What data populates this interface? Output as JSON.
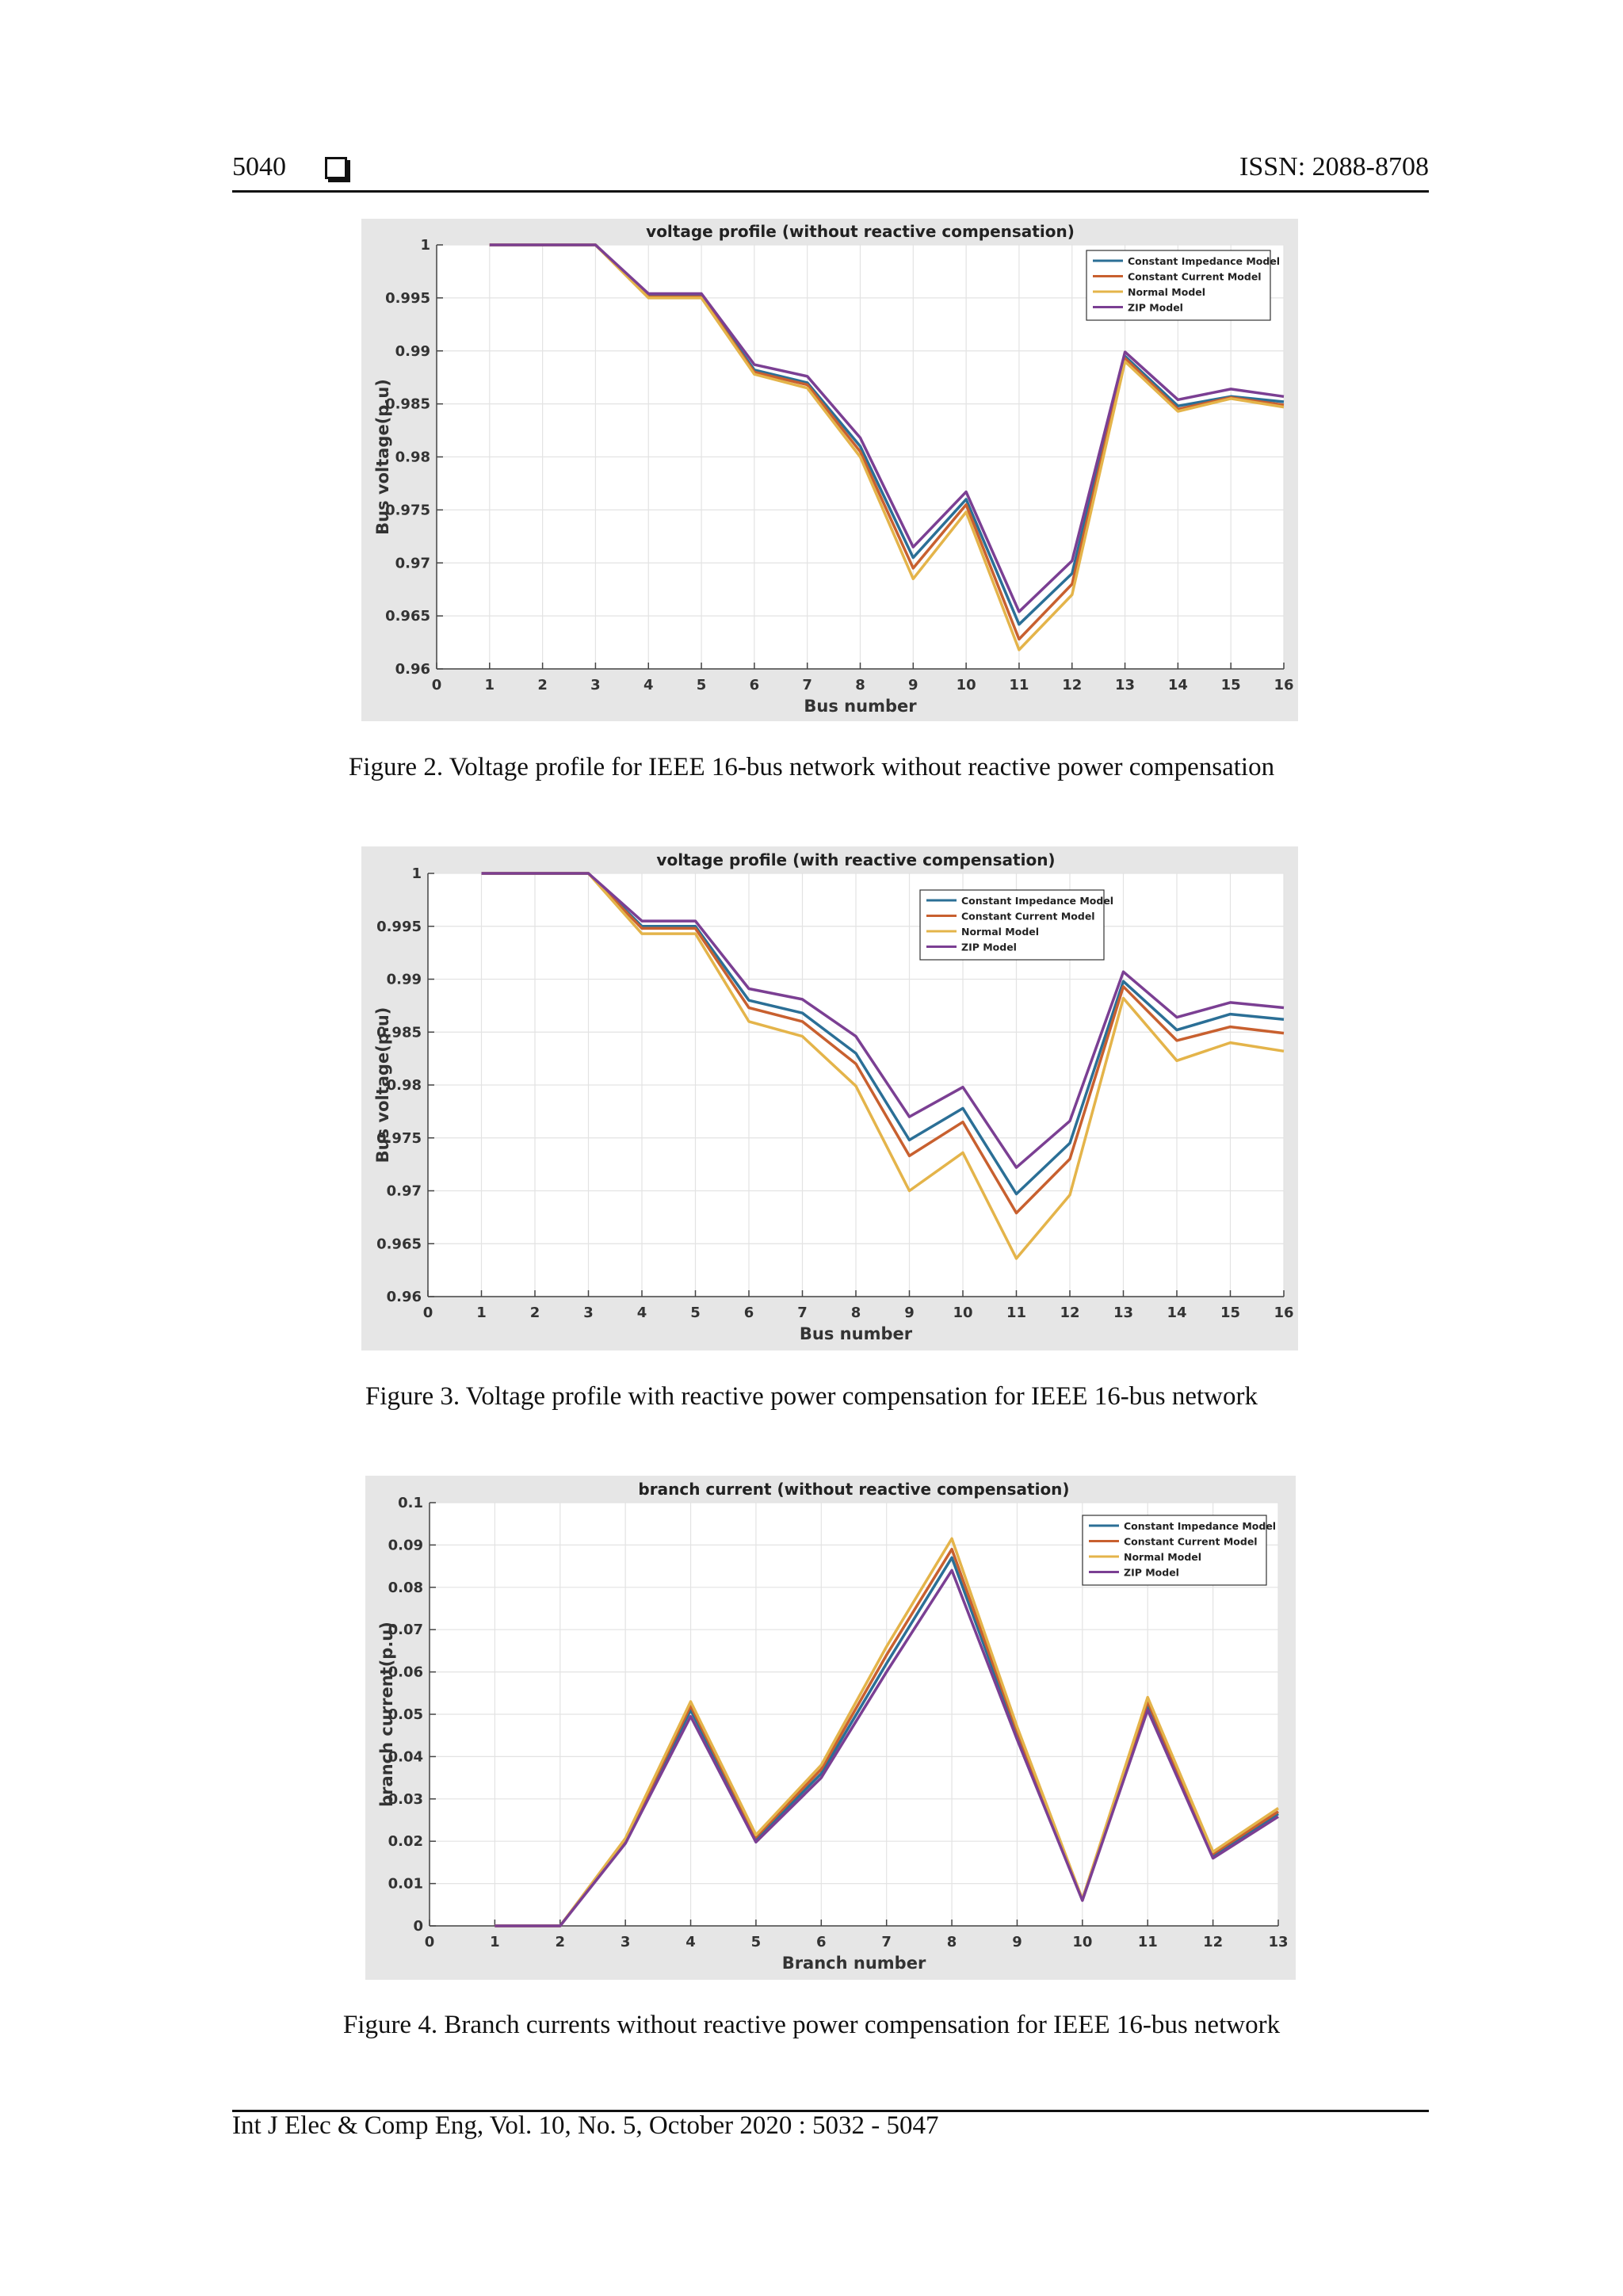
{
  "header": {
    "page_number": "5040",
    "issn": "ISSN: 2088-8708"
  },
  "footer": {
    "citation": "Int J Elec & Comp Eng, Vol. 10, No. 5, October 2020 :  5032 - 5047"
  },
  "colors": {
    "constant_impedance": "#2b6f96",
    "constant_current": "#c8602f",
    "normal": "#e4b44a",
    "zip": "#7b3f93"
  },
  "figures": [
    {
      "caption": "Figure 2. Voltage profile for IEEE 16-bus network without reactive power compensation"
    },
    {
      "caption": "Figure 3. Voltage profile with reactive power compensation for IEEE 16-bus network"
    },
    {
      "caption": "Figure 4.  Branch currents without reactive power compensation for IEEE 16-bus network"
    }
  ],
  "chart_data": [
    {
      "type": "line",
      "title": "voltage profile (without reactive compensation)",
      "xlabel": "Bus number",
      "ylabel": "Bus voltage(p.u)",
      "xlim": [
        0,
        16
      ],
      "ylim": [
        0.96,
        1
      ],
      "xticks": [
        0,
        1,
        2,
        3,
        4,
        5,
        6,
        7,
        8,
        9,
        10,
        11,
        12,
        13,
        14,
        15,
        16
      ],
      "yticks": [
        0.96,
        0.965,
        0.97,
        0.975,
        0.98,
        0.985,
        0.99,
        0.995,
        1
      ],
      "ytick_labels": [
        "0.96",
        "0.965",
        "0.97",
        "0.975",
        "0.98",
        "0.985",
        "0.99",
        "0.995",
        "1"
      ],
      "grid": true,
      "legend_position": "top-right",
      "x": [
        1,
        2,
        3,
        4,
        5,
        6,
        7,
        8,
        9,
        10,
        11,
        12,
        13,
        14,
        15,
        16
      ],
      "series": [
        {
          "name": "Constant Impedance Model",
          "values": [
            1,
            1,
            1,
            0.9952,
            0.9952,
            0.9882,
            0.987,
            0.981,
            0.9705,
            0.976,
            0.9642,
            0.969,
            0.9895,
            0.9848,
            0.9857,
            0.9852
          ]
        },
        {
          "name": "Constant Current Model",
          "values": [
            1,
            1,
            1,
            0.9951,
            0.9951,
            0.988,
            0.9868,
            0.9805,
            0.9695,
            0.9755,
            0.9628,
            0.968,
            0.9893,
            0.9845,
            0.9856,
            0.9849
          ]
        },
        {
          "name": "Normal Model",
          "values": [
            1,
            1,
            1,
            0.995,
            0.995,
            0.9878,
            0.9865,
            0.98,
            0.9685,
            0.9748,
            0.9618,
            0.967,
            0.989,
            0.9843,
            0.9855,
            0.9847
          ]
        },
        {
          "name": "ZIP Model",
          "values": [
            1,
            1,
            1,
            0.9954,
            0.9954,
            0.9887,
            0.9876,
            0.9818,
            0.9715,
            0.9767,
            0.9654,
            0.9702,
            0.9899,
            0.9854,
            0.9864,
            0.9857
          ]
        }
      ]
    },
    {
      "type": "line",
      "title": "voltage profile (with reactive compensation)",
      "xlabel": "Bus number",
      "ylabel": "Bus voltage(p.u)",
      "xlim": [
        0,
        16
      ],
      "ylim": [
        0.96,
        1
      ],
      "xticks": [
        0,
        1,
        2,
        3,
        4,
        5,
        6,
        7,
        8,
        9,
        10,
        11,
        12,
        13,
        14,
        15,
        16
      ],
      "yticks": [
        0.96,
        0.965,
        0.97,
        0.975,
        0.98,
        0.985,
        0.99,
        0.995,
        1
      ],
      "ytick_labels": [
        "0.96",
        "0.965",
        "0.97",
        "0.975",
        "0.98",
        "0.985",
        "0.99",
        "0.995",
        "1"
      ],
      "grid": true,
      "legend_position": "top-center-right",
      "x": [
        1,
        2,
        3,
        4,
        5,
        6,
        7,
        8,
        9,
        10,
        11,
        12,
        13,
        14,
        15,
        16
      ],
      "series": [
        {
          "name": "Constant Impedance Model",
          "values": [
            1,
            1,
            1,
            0.995,
            0.995,
            0.988,
            0.9868,
            0.983,
            0.9748,
            0.9778,
            0.9697,
            0.9745,
            0.9898,
            0.9852,
            0.9867,
            0.9862
          ]
        },
        {
          "name": "Constant Current Model",
          "values": [
            1,
            1,
            1,
            0.9948,
            0.9948,
            0.9873,
            0.986,
            0.982,
            0.9733,
            0.9765,
            0.9679,
            0.973,
            0.9893,
            0.9842,
            0.9855,
            0.9849
          ]
        },
        {
          "name": "Normal Model",
          "values": [
            1,
            1,
            1,
            0.9943,
            0.9943,
            0.986,
            0.9846,
            0.9799,
            0.97,
            0.9736,
            0.9636,
            0.9696,
            0.9882,
            0.9823,
            0.984,
            0.9832
          ]
        },
        {
          "name": "ZIP Model",
          "values": [
            1,
            1,
            1,
            0.9955,
            0.9955,
            0.9891,
            0.9881,
            0.9846,
            0.977,
            0.9798,
            0.9722,
            0.9766,
            0.9907,
            0.9864,
            0.9878,
            0.9873
          ]
        }
      ]
    },
    {
      "type": "line",
      "title": "branch current (without reactive compensation)",
      "xlabel": "Branch number",
      "ylabel": "branch current(p.u)",
      "xlim": [
        0,
        13
      ],
      "ylim": [
        0,
        0.1
      ],
      "xticks": [
        0,
        1,
        2,
        3,
        4,
        5,
        6,
        7,
        8,
        9,
        10,
        11,
        12,
        13
      ],
      "yticks": [
        0,
        0.01,
        0.02,
        0.03,
        0.04,
        0.05,
        0.06,
        0.07,
        0.08,
        0.09,
        0.1
      ],
      "ytick_labels": [
        "0",
        "0.01",
        "0.02",
        "0.03",
        "0.04",
        "0.05",
        "0.06",
        "0.07",
        "0.08",
        "0.09",
        "0.1"
      ],
      "grid": true,
      "legend_position": "top-right",
      "x": [
        1,
        2,
        3,
        4,
        5,
        6,
        7,
        8,
        9,
        10,
        11,
        12,
        13
      ],
      "series": [
        {
          "name": "Constant Impedance Model",
          "values": [
            0,
            0,
            0.02,
            0.051,
            0.0205,
            0.036,
            0.062,
            0.087,
            0.045,
            0.0062,
            0.052,
            0.0165,
            0.0265
          ]
        },
        {
          "name": "Constant Current Model",
          "values": [
            0,
            0,
            0.0203,
            0.052,
            0.021,
            0.037,
            0.064,
            0.089,
            0.046,
            0.0063,
            0.053,
            0.017,
            0.027
          ]
        },
        {
          "name": "Normal Model",
          "values": [
            0,
            0,
            0.0207,
            0.053,
            0.0215,
            0.038,
            0.066,
            0.0915,
            0.047,
            0.0063,
            0.054,
            0.0175,
            0.0278
          ]
        },
        {
          "name": "ZIP Model",
          "values": [
            0,
            0,
            0.0195,
            0.0495,
            0.0198,
            0.035,
            0.06,
            0.084,
            0.044,
            0.006,
            0.051,
            0.016,
            0.0258
          ]
        }
      ]
    }
  ]
}
